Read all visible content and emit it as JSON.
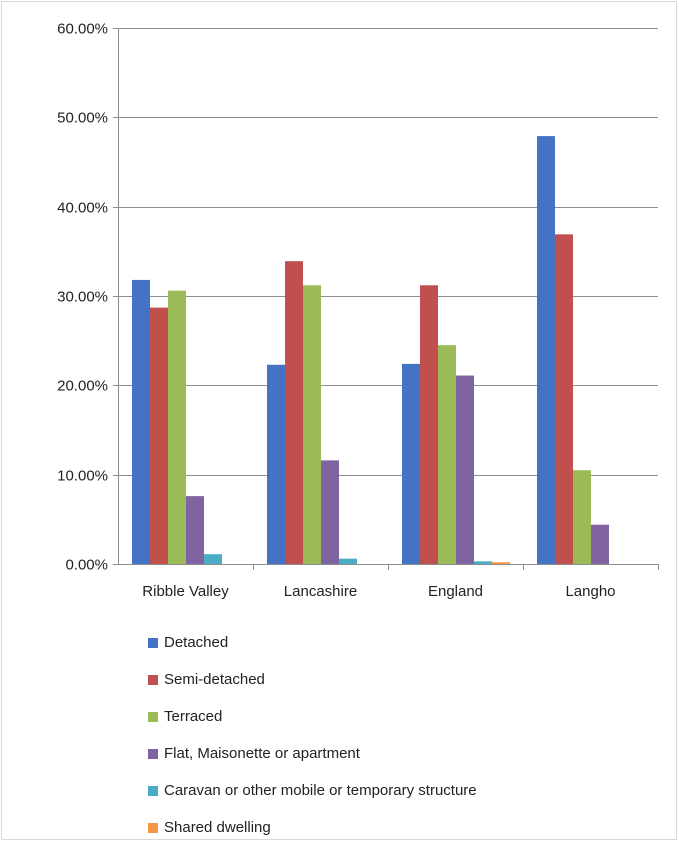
{
  "chart_data": {
    "type": "bar",
    "categories": [
      "Ribble Valley",
      "Lancashire",
      "England",
      "Langho"
    ],
    "series": [
      {
        "name": "Detached",
        "color": "#4472c4",
        "values": [
          31.8,
          22.3,
          22.4,
          47.9
        ]
      },
      {
        "name": "Semi-detached",
        "color": "#c0504d",
        "values": [
          28.7,
          33.9,
          31.2,
          36.9
        ]
      },
      {
        "name": "Terraced",
        "color": "#9bbb59",
        "values": [
          30.6,
          31.2,
          24.5,
          10.5
        ]
      },
      {
        "name": "Flat, Maisonette or apartment",
        "color": "#8064a2",
        "values": [
          7.6,
          11.6,
          21.1,
          4.4
        ]
      },
      {
        "name": "Caravan or other mobile or temporary structure",
        "color": "#4bacc6",
        "values": [
          1.1,
          0.6,
          0.3,
          0.0
        ]
      },
      {
        "name": "Shared dwelling",
        "color": "#f79646",
        "values": [
          0.0,
          0.0,
          0.2,
          0.0
        ]
      }
    ],
    "y_ticks": [
      "0.00%",
      "10.00%",
      "20.00%",
      "30.00%",
      "40.00%",
      "50.00%",
      "60.00%"
    ],
    "ylim": [
      0,
      60
    ],
    "grid": true,
    "legend_position": "bottom",
    "title": "",
    "xlabel": "",
    "ylabel": ""
  }
}
